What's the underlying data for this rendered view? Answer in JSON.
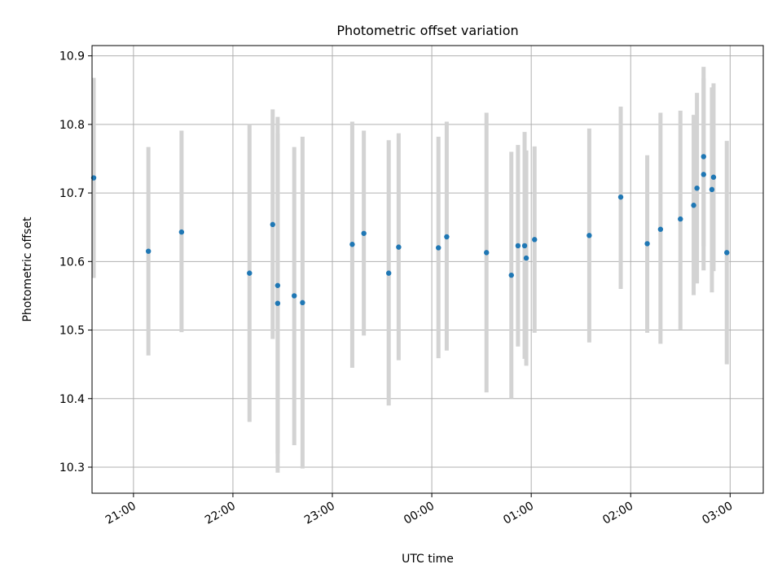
{
  "chart_data": {
    "type": "scatter",
    "title": "Photometric offset variation",
    "xlabel": "UTC time",
    "ylabel": "Photometric offset",
    "x_axis_type": "time",
    "xlim": [
      "20:35",
      "03:20"
    ],
    "ylim": [
      10.262,
      10.915
    ],
    "x_ticks": [
      "21:00",
      "22:00",
      "23:00",
      "00:00",
      "01:00",
      "02:00",
      "03:00"
    ],
    "y_ticks": [
      10.3,
      10.4,
      10.5,
      10.6,
      10.7,
      10.8,
      10.9
    ],
    "grid": true,
    "legend": "none",
    "colors": {
      "points": "#1f77b4",
      "error_bars": "#d3d3d3"
    },
    "points": [
      {
        "time": "20:36",
        "y": 10.722,
        "ylo": 10.576,
        "yhi": 10.868
      },
      {
        "time": "21:09",
        "y": 10.615,
        "ylo": 10.463,
        "yhi": 10.767
      },
      {
        "time": "21:29",
        "y": 10.643,
        "ylo": 10.497,
        "yhi": 10.791
      },
      {
        "time": "22:10",
        "y": 10.583,
        "ylo": 10.366,
        "yhi": 10.801
      },
      {
        "time": "22:24",
        "y": 10.654,
        "ylo": 10.487,
        "yhi": 10.822
      },
      {
        "time": "22:27",
        "y": 10.565,
        "ylo": 10.32,
        "yhi": 10.811
      },
      {
        "time": "22:27",
        "y": 10.539,
        "ylo": 10.292,
        "yhi": 10.787
      },
      {
        "time": "22:37",
        "y": 10.55,
        "ylo": 10.332,
        "yhi": 10.767
      },
      {
        "time": "22:42",
        "y": 10.54,
        "ylo": 10.298,
        "yhi": 10.782
      },
      {
        "time": "23:12",
        "y": 10.625,
        "ylo": 10.445,
        "yhi": 10.804
      },
      {
        "time": "23:19",
        "y": 10.641,
        "ylo": 10.492,
        "yhi": 10.791
      },
      {
        "time": "23:34",
        "y": 10.583,
        "ylo": 10.39,
        "yhi": 10.777
      },
      {
        "time": "23:40",
        "y": 10.621,
        "ylo": 10.456,
        "yhi": 10.787
      },
      {
        "time": "00:04",
        "y": 10.62,
        "ylo": 10.459,
        "yhi": 10.782
      },
      {
        "time": "00:09",
        "y": 10.636,
        "ylo": 10.47,
        "yhi": 10.804
      },
      {
        "time": "00:33",
        "y": 10.613,
        "ylo": 10.409,
        "yhi": 10.817
      },
      {
        "time": "00:48",
        "y": 10.58,
        "ylo": 10.4,
        "yhi": 10.76
      },
      {
        "time": "00:52",
        "y": 10.623,
        "ylo": 10.476,
        "yhi": 10.77
      },
      {
        "time": "00:56",
        "y": 10.623,
        "ylo": 10.458,
        "yhi": 10.789
      },
      {
        "time": "00:57",
        "y": 10.605,
        "ylo": 10.448,
        "yhi": 10.762
      },
      {
        "time": "01:02",
        "y": 10.632,
        "ylo": 10.496,
        "yhi": 10.768
      },
      {
        "time": "01:35",
        "y": 10.638,
        "ylo": 10.482,
        "yhi": 10.794
      },
      {
        "time": "01:54",
        "y": 10.694,
        "ylo": 10.56,
        "yhi": 10.826
      },
      {
        "time": "02:10",
        "y": 10.626,
        "ylo": 10.496,
        "yhi": 10.755
      },
      {
        "time": "02:18",
        "y": 10.647,
        "ylo": 10.48,
        "yhi": 10.817
      },
      {
        "time": "02:30",
        "y": 10.662,
        "ylo": 10.501,
        "yhi": 10.82
      },
      {
        "time": "02:38",
        "y": 10.682,
        "ylo": 10.551,
        "yhi": 10.814
      },
      {
        "time": "02:40",
        "y": 10.707,
        "ylo": 10.568,
        "yhi": 10.846
      },
      {
        "time": "02:44",
        "y": 10.753,
        "ylo": 10.622,
        "yhi": 10.884
      },
      {
        "time": "02:44",
        "y": 10.727,
        "ylo": 10.587,
        "yhi": 10.867
      },
      {
        "time": "02:49",
        "y": 10.705,
        "ylo": 10.555,
        "yhi": 10.854
      },
      {
        "time": "02:50",
        "y": 10.723,
        "ylo": 10.586,
        "yhi": 10.86
      },
      {
        "time": "02:58",
        "y": 10.613,
        "ylo": 10.45,
        "yhi": 10.776
      }
    ]
  }
}
